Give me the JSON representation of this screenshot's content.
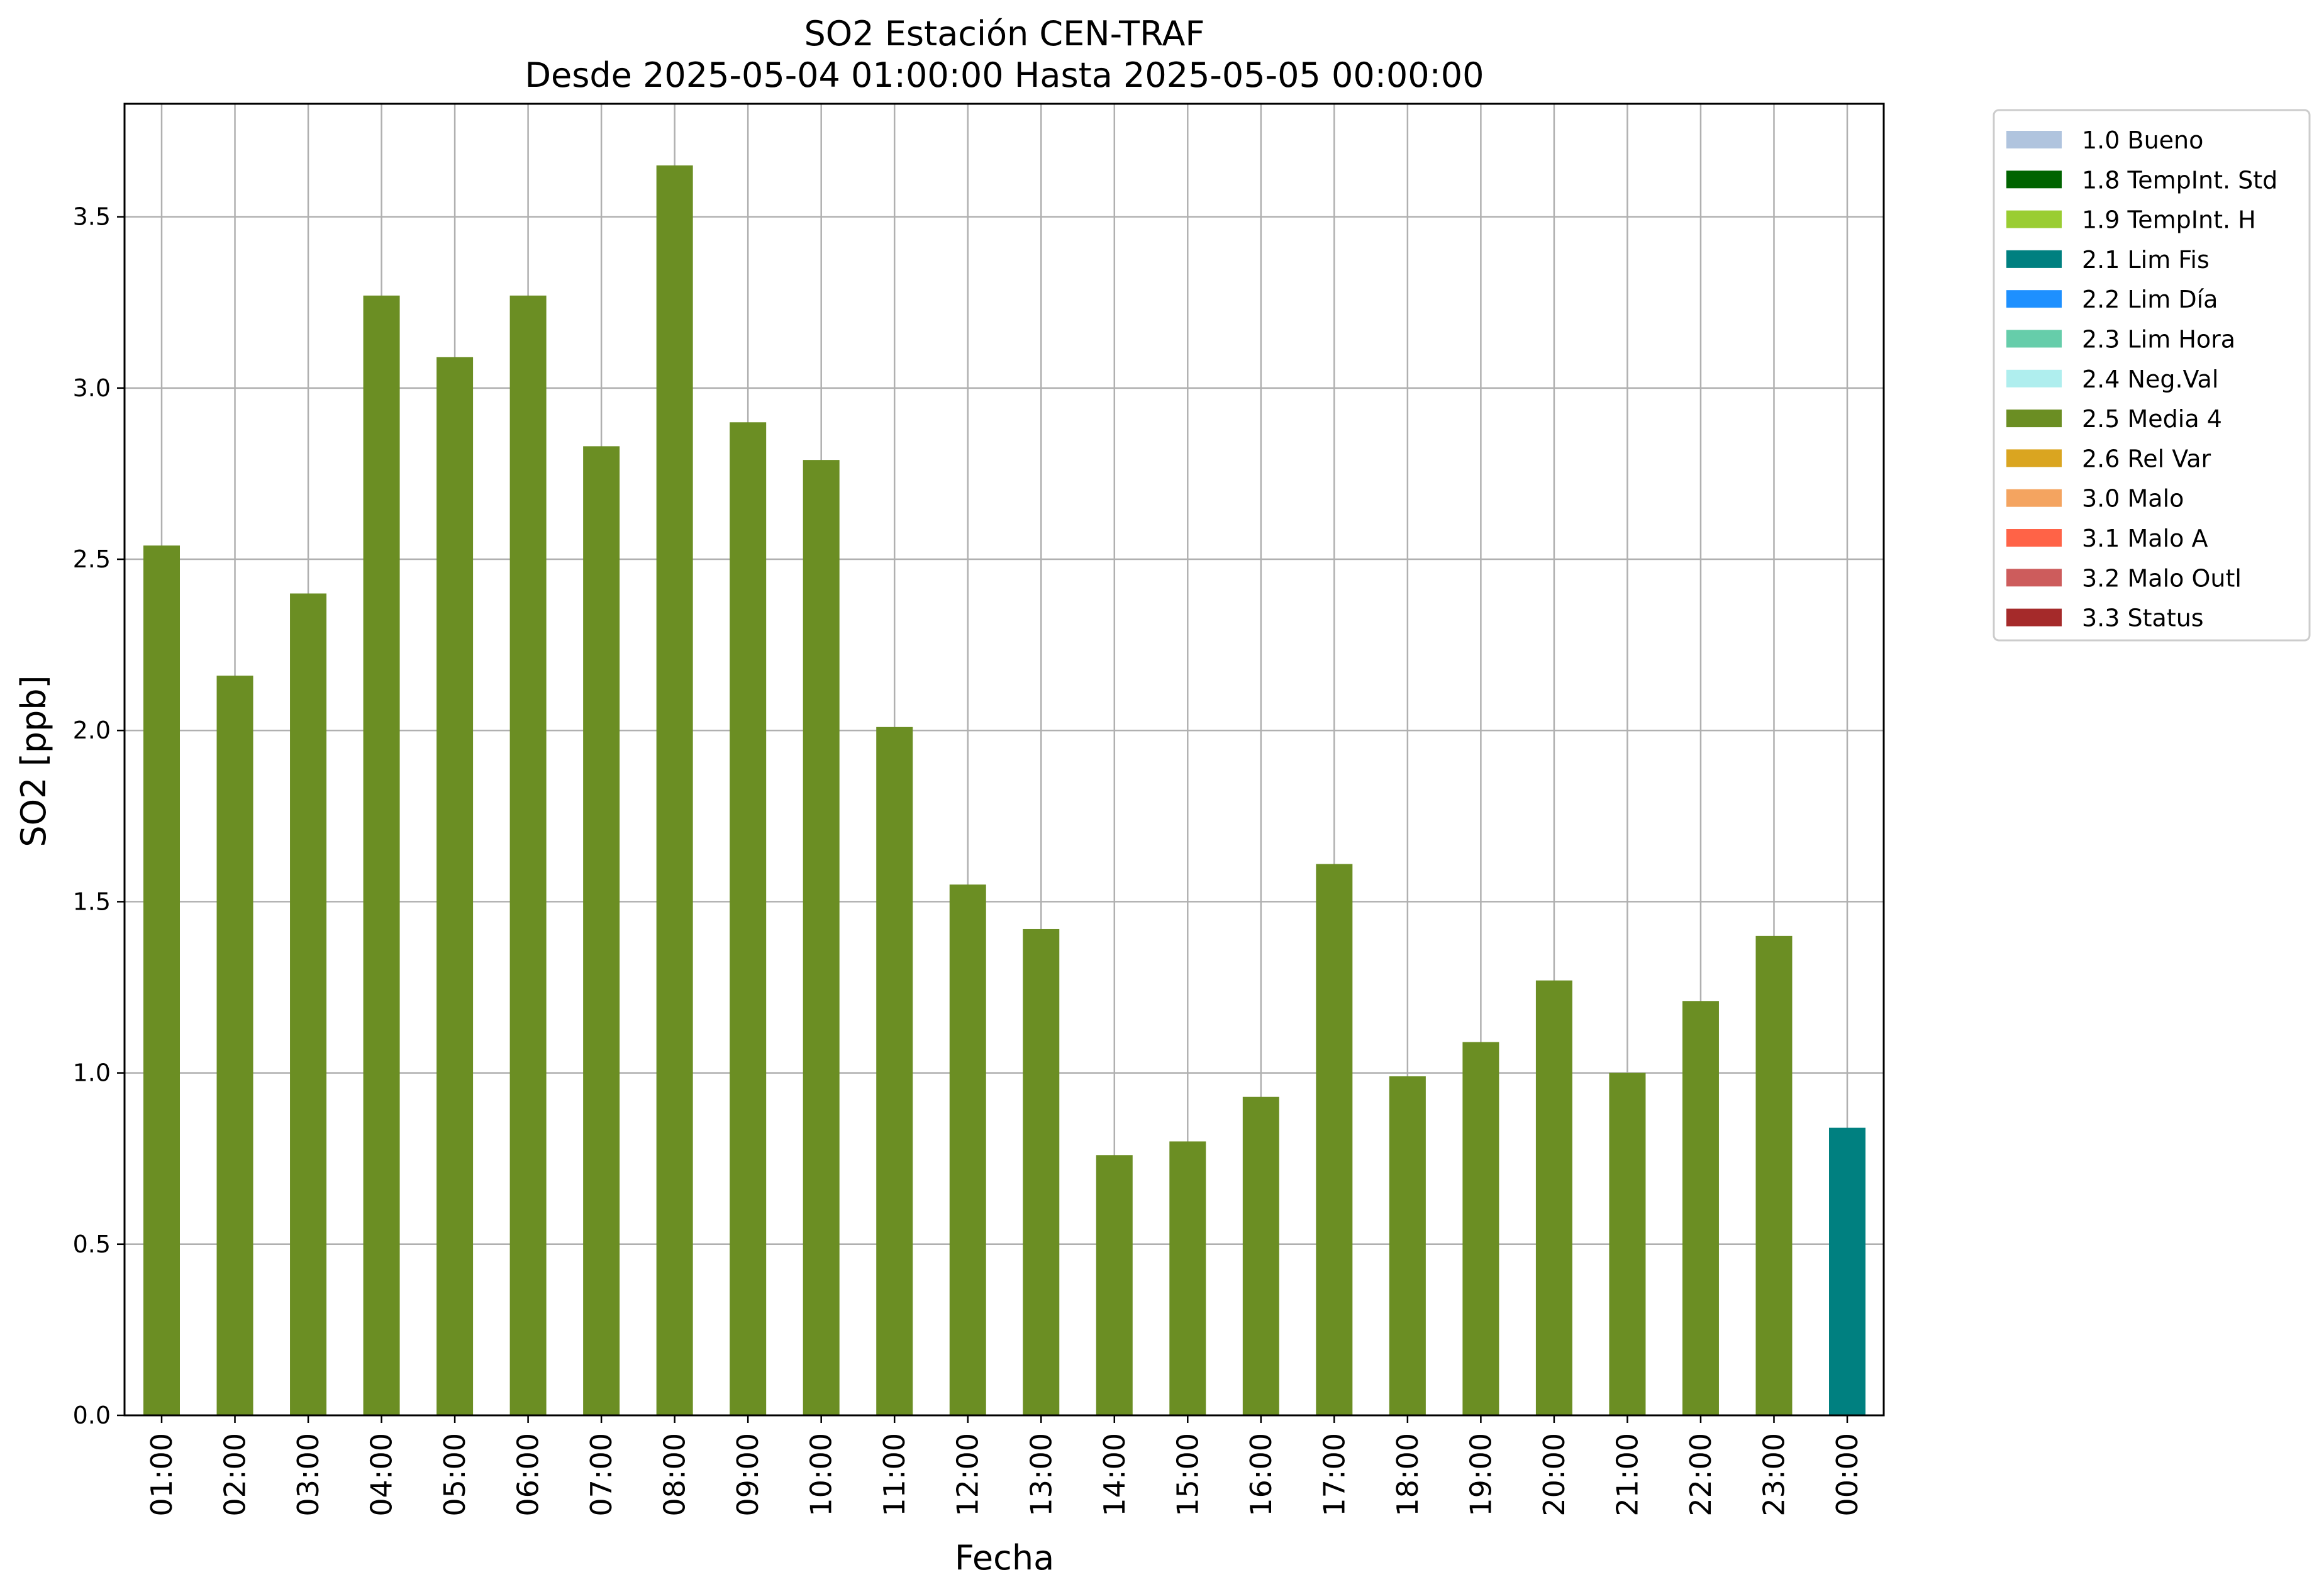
{
  "chart_data": {
    "type": "bar",
    "title": "SO2 Estación CEN-TRAF",
    "subtitle": "Desde 2025-05-04 01:00:00 Hasta 2025-05-05 00:00:00",
    "xlabel": "Fecha",
    "ylabel": "SO2 [ppb]",
    "ylim": [
      0,
      3.83
    ],
    "yticks": [
      "0.0",
      "0.5",
      "1.0",
      "1.5",
      "2.0",
      "2.5",
      "3.0",
      "3.5"
    ],
    "grid": true,
    "legend_position": "outside-right-top",
    "categories": [
      "01:00",
      "02:00",
      "03:00",
      "04:00",
      "05:00",
      "06:00",
      "07:00",
      "08:00",
      "09:00",
      "10:00",
      "11:00",
      "12:00",
      "13:00",
      "14:00",
      "15:00",
      "16:00",
      "17:00",
      "18:00",
      "19:00",
      "20:00",
      "21:00",
      "22:00",
      "23:00",
      "00:00"
    ],
    "values": [
      2.54,
      2.16,
      2.4,
      3.27,
      3.09,
      3.27,
      2.83,
      3.65,
      2.9,
      2.79,
      2.01,
      1.55,
      1.42,
      0.76,
      0.8,
      0.93,
      1.61,
      0.99,
      1.09,
      1.27,
      1.0,
      1.21,
      1.4,
      0.84
    ],
    "flags": [
      "2.5 Media 4",
      "2.5 Media 4",
      "2.5 Media 4",
      "2.5 Media 4",
      "2.5 Media 4",
      "2.5 Media 4",
      "2.5 Media 4",
      "2.5 Media 4",
      "2.5 Media 4",
      "2.5 Media 4",
      "2.5 Media 4",
      "2.5 Media 4",
      "2.5 Media 4",
      "2.5 Media 4",
      "2.5 Media 4",
      "2.5 Media 4",
      "2.5 Media 4",
      "2.5 Media 4",
      "2.5 Media 4",
      "2.5 Media 4",
      "2.5 Media 4",
      "2.5 Media 4",
      "2.5 Media 4",
      "2.1 Lim Fis"
    ],
    "legend": [
      {
        "label": "1.0 Bueno",
        "color": "#b0c4de"
      },
      {
        "label": "1.8 TempInt. Std",
        "color": "#006400"
      },
      {
        "label": "1.9 TempInt. H",
        "color": "#9acd32"
      },
      {
        "label": "2.1 Lim Fis",
        "color": "#008080"
      },
      {
        "label": "2.2 Lim Día",
        "color": "#1e90ff"
      },
      {
        "label": "2.3 Lim Hora",
        "color": "#66cdaa"
      },
      {
        "label": "2.4 Neg.Val",
        "color": "#afeeee"
      },
      {
        "label": "2.5 Media 4",
        "color": "#6b8e23"
      },
      {
        "label": "2.6 Rel Var",
        "color": "#daa520"
      },
      {
        "label": "3.0 Malo",
        "color": "#f4a460"
      },
      {
        "label": "3.1 Malo A",
        "color": "#ff6347"
      },
      {
        "label": "3.2 Malo Outl",
        "color": "#cd5c5c"
      },
      {
        "label": "3.3 Status",
        "color": "#a52a2a"
      }
    ]
  }
}
